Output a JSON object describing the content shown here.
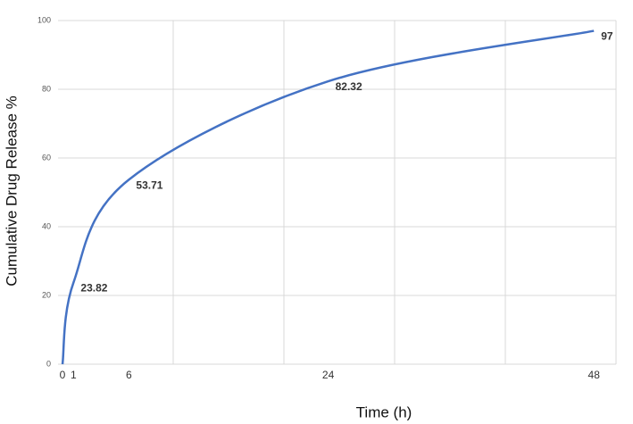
{
  "chart_data": {
    "type": "line",
    "x_label": "Time (h)",
    "y_label": "Cumulative Drug Release %",
    "x": [
      0,
      1,
      6,
      24,
      48
    ],
    "series": [
      {
        "color": "#4472c4",
        "values": [
          0,
          23.82,
          53.71,
          82.32,
          97
        ],
        "value_labels": [
          null,
          "23.82",
          "53.71",
          "82.32",
          "97"
        ]
      }
    ],
    "xlim": [
      0,
      50
    ],
    "xticks": [
      0,
      1,
      6,
      24,
      48
    ],
    "xgridlines": [
      10,
      20,
      30,
      40,
      50
    ],
    "ylim": [
      0,
      100
    ],
    "yticks": [
      0,
      20,
      40,
      60,
      80,
      100
    ],
    "grid": true
  }
}
